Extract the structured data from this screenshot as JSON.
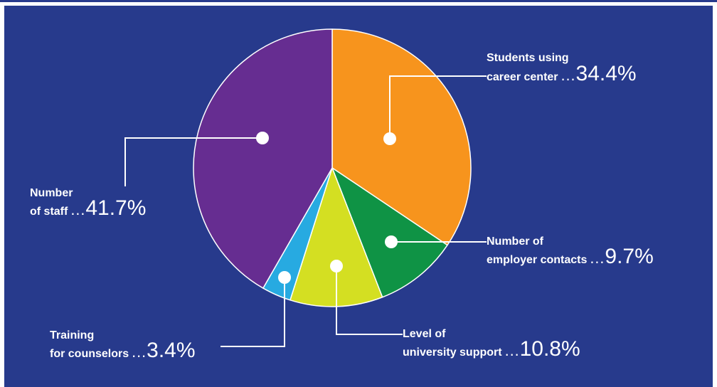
{
  "colors": {
    "background": "#273a8c",
    "rule": "#273a8c",
    "leader": "#ffffff",
    "text": "#ffffff"
  },
  "chart_data": {
    "type": "pie",
    "title": "",
    "start": "12 o'clock, clockwise",
    "slices": [
      {
        "line1": "Students using",
        "line2": "career center",
        "value": 34.4,
        "display": "34.4%",
        "color": "#f7941d"
      },
      {
        "line1": "Number of",
        "line2": "employer contacts",
        "value": 9.7,
        "display": "9.7%",
        "color": "#0f9345"
      },
      {
        "line1": "Level of",
        "line2": "university support",
        "value": 10.8,
        "display": "10.8%",
        "color": "#d4df22"
      },
      {
        "line1": "Training",
        "line2": "for counselors",
        "value": 3.4,
        "display": "3.4%",
        "color": "#27aae1"
      },
      {
        "line1": "Number",
        "line2": "of staff",
        "value": 41.7,
        "display": "41.7%",
        "color": "#662d91"
      }
    ],
    "separator": "…"
  }
}
